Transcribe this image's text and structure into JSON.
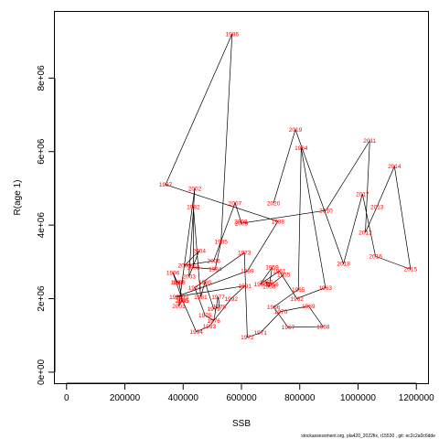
{
  "chart_data": {
    "type": "line",
    "xlabel": "SSB",
    "ylabel": "R(age 1)",
    "xlim": [
      -40000,
      1240000
    ],
    "ylim": [
      -300000,
      9800000
    ],
    "x_ticks": [
      {
        "value": 0,
        "label": "0"
      },
      {
        "value": 200000,
        "label": "200000"
      },
      {
        "value": 400000,
        "label": "400000"
      },
      {
        "value": 600000,
        "label": "600000"
      },
      {
        "value": 800000,
        "label": "800000"
      },
      {
        "value": 1000000,
        "label": "1000000"
      },
      {
        "value": 1200000,
        "label": "1200000"
      }
    ],
    "y_ticks": [
      {
        "value": 0,
        "label": "0e+00"
      },
      {
        "value": 2000000,
        "label": "2e+06"
      },
      {
        "value": 4000000,
        "label": "4e+06"
      },
      {
        "value": 6000000,
        "label": "6e+06"
      },
      {
        "value": 8000000,
        "label": "8e+06"
      }
    ],
    "line_color": "#000000",
    "label_color": "#ff0000",
    "points": [
      {
        "year": "1963",
        "x": 888000,
        "y": 2300000
      },
      {
        "year": "1964",
        "x": 805000,
        "y": 6100000
      },
      {
        "year": "1965",
        "x": 795000,
        "y": 2250000
      },
      {
        "year": "1966",
        "x": 710000,
        "y": 1770000
      },
      {
        "year": "1967",
        "x": 760000,
        "y": 1220000
      },
      {
        "year": "1968",
        "x": 880000,
        "y": 1240000
      },
      {
        "year": "1969",
        "x": 830000,
        "y": 1800000
      },
      {
        "year": "1970",
        "x": 735000,
        "y": 1650000
      },
      {
        "year": "1971",
        "x": 665000,
        "y": 1070000
      },
      {
        "year": "1972",
        "x": 620000,
        "y": 950000
      },
      {
        "year": "1973",
        "x": 610000,
        "y": 3250000
      },
      {
        "year": "1974",
        "x": 440000,
        "y": 2300000
      },
      {
        "year": "1975",
        "x": 475000,
        "y": 1550000
      },
      {
        "year": "1976",
        "x": 505000,
        "y": 1400000
      },
      {
        "year": "1977",
        "x": 520000,
        "y": 2050000
      },
      {
        "year": "1978",
        "x": 525000,
        "y": 1780000
      },
      {
        "year": "1979",
        "x": 505000,
        "y": 1720000
      },
      {
        "year": "1980",
        "x": 475000,
        "y": 2450000
      },
      {
        "year": "1981",
        "x": 460000,
        "y": 2050000
      },
      {
        "year": "1982",
        "x": 435000,
        "y": 4500000
      },
      {
        "year": "1983",
        "x": 435000,
        "y": 2850000
      },
      {
        "year": "1984",
        "x": 510000,
        "y": 2800000
      },
      {
        "year": "1985",
        "x": 530000,
        "y": 3550000
      },
      {
        "year": "1986",
        "x": 568000,
        "y": 9200000
      },
      {
        "year": "1987",
        "x": 340000,
        "y": 5100000
      },
      {
        "year": "1988",
        "x": 725000,
        "y": 4100000
      },
      {
        "year": "1989",
        "x": 620000,
        "y": 2750000
      },
      {
        "year": "1990",
        "x": 375000,
        "y": 2050000
      },
      {
        "year": "1991",
        "x": 612000,
        "y": 2350000
      },
      {
        "year": "1992",
        "x": 565000,
        "y": 2000000
      },
      {
        "year": "1993",
        "x": 490000,
        "y": 1250000
      },
      {
        "year": "1994",
        "x": 445000,
        "y": 1100000
      },
      {
        "year": "1995",
        "x": 398000,
        "y": 1950000
      },
      {
        "year": "1996",
        "x": 365000,
        "y": 2700000
      },
      {
        "year": "1997",
        "x": 380000,
        "y": 2450000
      },
      {
        "year": "1998",
        "x": 385000,
        "y": 2450000
      },
      {
        "year": "1999",
        "x": 395000,
        "y": 2050000
      },
      {
        "year": "2000",
        "x": 395000,
        "y": 1950000
      },
      {
        "year": "2001",
        "x": 385000,
        "y": 1800000
      },
      {
        "year": "2002",
        "x": 440000,
        "y": 5000000
      },
      {
        "year": "2003",
        "x": 420000,
        "y": 2600000
      },
      {
        "year": "2004",
        "x": 455000,
        "y": 3300000
      },
      {
        "year": "2005",
        "x": 405000,
        "y": 2900000
      },
      {
        "year": "2006",
        "x": 505000,
        "y": 3030000
      },
      {
        "year": "2007",
        "x": 578000,
        "y": 4600000
      },
      {
        "year": "2008",
        "x": 598000,
        "y": 4100000
      },
      {
        "year": "2009",
        "x": 600000,
        "y": 4050000
      },
      {
        "year": "2010",
        "x": 890000,
        "y": 4400000
      },
      {
        "year": "2011",
        "x": 1040000,
        "y": 6300000
      },
      {
        "year": "2012",
        "x": 1025000,
        "y": 3800000
      },
      {
        "year": "2013",
        "x": 1065000,
        "y": 4500000
      },
      {
        "year": "2014",
        "x": 1125000,
        "y": 5600000
      },
      {
        "year": "2015",
        "x": 1180000,
        "y": 2800000
      },
      {
        "year": "2016",
        "x": 1060000,
        "y": 3150000
      },
      {
        "year": "2017",
        "x": 1015000,
        "y": 4850000
      },
      {
        "year": "2018",
        "x": 950000,
        "y": 2950000
      },
      {
        "year": "2019",
        "x": 785000,
        "y": 6600000
      },
      {
        "year": "2020",
        "x": 710000,
        "y": 4600000
      },
      {
        "year": "1955",
        "x": 745000,
        "y": 2650000
      },
      {
        "year": "1956",
        "x": 705000,
        "y": 2400000
      },
      {
        "year": "1957",
        "x": 685000,
        "y": 2450000
      },
      {
        "year": "1958",
        "x": 695000,
        "y": 2330000
      },
      {
        "year": "1959",
        "x": 705000,
        "y": 2850000
      },
      {
        "year": "1960",
        "x": 665000,
        "y": 2400000
      },
      {
        "year": "1961",
        "x": 730000,
        "y": 2750000
      }
    ],
    "path_order": [
      "1955",
      "1956",
      "1957",
      "1958",
      "1959",
      "1960",
      "1961",
      "1962",
      "1963",
      "1964",
      "1965",
      "1966",
      "1967",
      "1968",
      "1969",
      "1970",
      "1971",
      "1972",
      "1973",
      "1974",
      "1975",
      "1976",
      "1977",
      "1978",
      "1979",
      "1980",
      "1981",
      "1982",
      "1983",
      "1984",
      "1985",
      "1986",
      "1987",
      "1988",
      "1989",
      "1990",
      "1991",
      "1992",
      "1993",
      "1994",
      "1995",
      "1996",
      "1997",
      "1998",
      "1999",
      "2000",
      "2001",
      "2002",
      "2003",
      "2004",
      "2005",
      "2006",
      "2007",
      "2008",
      "2009",
      "2010",
      "2011",
      "2012",
      "2013",
      "2014",
      "2015",
      "2016",
      "2017",
      "2018",
      "2019",
      "2020"
    ],
    "extra_points": [
      {
        "year": "1962",
        "x": 790000,
        "y": 2000000
      }
    ]
  },
  "footer": "stockassessment.org, pla420_2022fix, r15530 , git: ec2c2a0c6dde"
}
